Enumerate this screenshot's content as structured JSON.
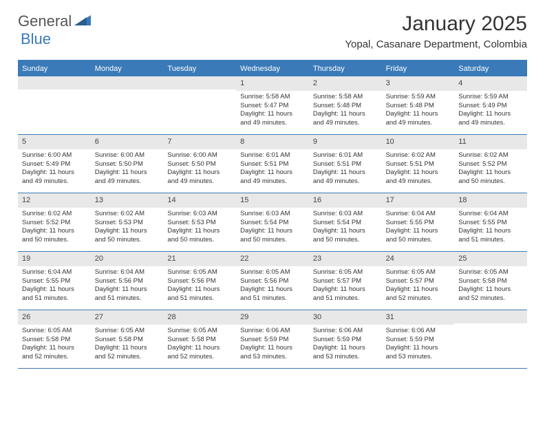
{
  "brand": {
    "general": "General",
    "blue": "Blue",
    "logo_color": "#3a7ab8"
  },
  "title": "January 2025",
  "location": "Yopal, Casanare Department, Colombia",
  "header_bg": "#3a7ab8",
  "daynum_bg": "#e8e8e8",
  "weekdays": [
    "Sunday",
    "Monday",
    "Tuesday",
    "Wednesday",
    "Thursday",
    "Friday",
    "Saturday"
  ],
  "weeks": [
    [
      {
        "n": "",
        "sr": "",
        "ss": "",
        "dl": ""
      },
      {
        "n": "",
        "sr": "",
        "ss": "",
        "dl": ""
      },
      {
        "n": "",
        "sr": "",
        "ss": "",
        "dl": ""
      },
      {
        "n": "1",
        "sr": "Sunrise: 5:58 AM",
        "ss": "Sunset: 5:47 PM",
        "dl": "Daylight: 11 hours and 49 minutes."
      },
      {
        "n": "2",
        "sr": "Sunrise: 5:58 AM",
        "ss": "Sunset: 5:48 PM",
        "dl": "Daylight: 11 hours and 49 minutes."
      },
      {
        "n": "3",
        "sr": "Sunrise: 5:59 AM",
        "ss": "Sunset: 5:48 PM",
        "dl": "Daylight: 11 hours and 49 minutes."
      },
      {
        "n": "4",
        "sr": "Sunrise: 5:59 AM",
        "ss": "Sunset: 5:49 PM",
        "dl": "Daylight: 11 hours and 49 minutes."
      }
    ],
    [
      {
        "n": "5",
        "sr": "Sunrise: 6:00 AM",
        "ss": "Sunset: 5:49 PM",
        "dl": "Daylight: 11 hours and 49 minutes."
      },
      {
        "n": "6",
        "sr": "Sunrise: 6:00 AM",
        "ss": "Sunset: 5:50 PM",
        "dl": "Daylight: 11 hours and 49 minutes."
      },
      {
        "n": "7",
        "sr": "Sunrise: 6:00 AM",
        "ss": "Sunset: 5:50 PM",
        "dl": "Daylight: 11 hours and 49 minutes."
      },
      {
        "n": "8",
        "sr": "Sunrise: 6:01 AM",
        "ss": "Sunset: 5:51 PM",
        "dl": "Daylight: 11 hours and 49 minutes."
      },
      {
        "n": "9",
        "sr": "Sunrise: 6:01 AM",
        "ss": "Sunset: 5:51 PM",
        "dl": "Daylight: 11 hours and 49 minutes."
      },
      {
        "n": "10",
        "sr": "Sunrise: 6:02 AM",
        "ss": "Sunset: 5:51 PM",
        "dl": "Daylight: 11 hours and 49 minutes."
      },
      {
        "n": "11",
        "sr": "Sunrise: 6:02 AM",
        "ss": "Sunset: 5:52 PM",
        "dl": "Daylight: 11 hours and 50 minutes."
      }
    ],
    [
      {
        "n": "12",
        "sr": "Sunrise: 6:02 AM",
        "ss": "Sunset: 5:52 PM",
        "dl": "Daylight: 11 hours and 50 minutes."
      },
      {
        "n": "13",
        "sr": "Sunrise: 6:02 AM",
        "ss": "Sunset: 5:53 PM",
        "dl": "Daylight: 11 hours and 50 minutes."
      },
      {
        "n": "14",
        "sr": "Sunrise: 6:03 AM",
        "ss": "Sunset: 5:53 PM",
        "dl": "Daylight: 11 hours and 50 minutes."
      },
      {
        "n": "15",
        "sr": "Sunrise: 6:03 AM",
        "ss": "Sunset: 5:54 PM",
        "dl": "Daylight: 11 hours and 50 minutes."
      },
      {
        "n": "16",
        "sr": "Sunrise: 6:03 AM",
        "ss": "Sunset: 5:54 PM",
        "dl": "Daylight: 11 hours and 50 minutes."
      },
      {
        "n": "17",
        "sr": "Sunrise: 6:04 AM",
        "ss": "Sunset: 5:55 PM",
        "dl": "Daylight: 11 hours and 50 minutes."
      },
      {
        "n": "18",
        "sr": "Sunrise: 6:04 AM",
        "ss": "Sunset: 5:55 PM",
        "dl": "Daylight: 11 hours and 51 minutes."
      }
    ],
    [
      {
        "n": "19",
        "sr": "Sunrise: 6:04 AM",
        "ss": "Sunset: 5:55 PM",
        "dl": "Daylight: 11 hours and 51 minutes."
      },
      {
        "n": "20",
        "sr": "Sunrise: 6:04 AM",
        "ss": "Sunset: 5:56 PM",
        "dl": "Daylight: 11 hours and 51 minutes."
      },
      {
        "n": "21",
        "sr": "Sunrise: 6:05 AM",
        "ss": "Sunset: 5:56 PM",
        "dl": "Daylight: 11 hours and 51 minutes."
      },
      {
        "n": "22",
        "sr": "Sunrise: 6:05 AM",
        "ss": "Sunset: 5:56 PM",
        "dl": "Daylight: 11 hours and 51 minutes."
      },
      {
        "n": "23",
        "sr": "Sunrise: 6:05 AM",
        "ss": "Sunset: 5:57 PM",
        "dl": "Daylight: 11 hours and 51 minutes."
      },
      {
        "n": "24",
        "sr": "Sunrise: 6:05 AM",
        "ss": "Sunset: 5:57 PM",
        "dl": "Daylight: 11 hours and 52 minutes."
      },
      {
        "n": "25",
        "sr": "Sunrise: 6:05 AM",
        "ss": "Sunset: 5:58 PM",
        "dl": "Daylight: 11 hours and 52 minutes."
      }
    ],
    [
      {
        "n": "26",
        "sr": "Sunrise: 6:05 AM",
        "ss": "Sunset: 5:58 PM",
        "dl": "Daylight: 11 hours and 52 minutes."
      },
      {
        "n": "27",
        "sr": "Sunrise: 6:05 AM",
        "ss": "Sunset: 5:58 PM",
        "dl": "Daylight: 11 hours and 52 minutes."
      },
      {
        "n": "28",
        "sr": "Sunrise: 6:05 AM",
        "ss": "Sunset: 5:58 PM",
        "dl": "Daylight: 11 hours and 52 minutes."
      },
      {
        "n": "29",
        "sr": "Sunrise: 6:06 AM",
        "ss": "Sunset: 5:59 PM",
        "dl": "Daylight: 11 hours and 53 minutes."
      },
      {
        "n": "30",
        "sr": "Sunrise: 6:06 AM",
        "ss": "Sunset: 5:59 PM",
        "dl": "Daylight: 11 hours and 53 minutes."
      },
      {
        "n": "31",
        "sr": "Sunrise: 6:06 AM",
        "ss": "Sunset: 5:59 PM",
        "dl": "Daylight: 11 hours and 53 minutes."
      },
      {
        "n": "",
        "sr": "",
        "ss": "",
        "dl": ""
      }
    ]
  ]
}
